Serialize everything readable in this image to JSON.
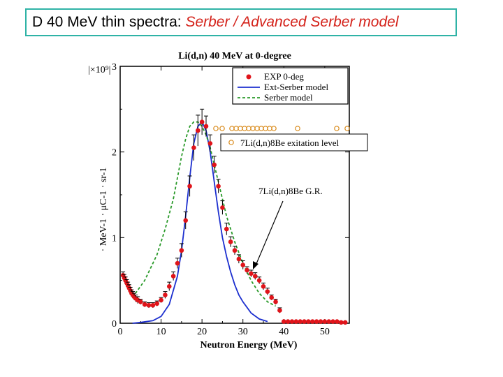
{
  "slide": {
    "title_prefix": "D 40 MeV thin spectra: ",
    "title_models": "Serber / Advanced Serber model"
  },
  "colors": {
    "exp": "#e0141a",
    "ext_serber": "#1c2fcf",
    "serber": "#2a9a2a",
    "orange_markers": "#d98a1a",
    "title_border": "#2fb3a6",
    "title_italic": "#d4221a"
  },
  "chart_data": {
    "type": "scatter",
    "title": "Li(d,n) 40 MeV at 0-degree",
    "xlabel": "Neutron Energy (MeV)",
    "ylabel_partial": "· MeV-1 · μC-1 · sr-1",
    "y_multiplier": "|×10⁹|",
    "xlim": [
      0,
      56
    ],
    "ylim": [
      0,
      3
    ],
    "x_ticks": [
      0,
      10,
      20,
      30,
      40,
      50
    ],
    "y_ticks": [
      0,
      1,
      2,
      3
    ],
    "legend_position": "top-right",
    "legend": [
      "EXP 0-deg",
      "Ext-Serber model",
      "Serber model"
    ],
    "annotations": {
      "excitation_level": "7Li(d,n)8Be exitation level",
      "giant_resonance": "7Li(d,n)8Be G.R."
    },
    "series": [
      {
        "name": "EXP 0-deg",
        "style": "points",
        "x": [
          0.7,
          1.0,
          1.3,
          1.6,
          1.9,
          2.2,
          2.5,
          2.8,
          3.1,
          3.4,
          3.8,
          4.3,
          5.0,
          6.0,
          7.0,
          8.0,
          9.0,
          10.0,
          11.0,
          12.0,
          13.0,
          14.0,
          15.0,
          16.0,
          17.0,
          18.0,
          19.0,
          20.0,
          21.0,
          22.0,
          23.0,
          24.0,
          25.0,
          26.0,
          27.0,
          28.0,
          29.0,
          30.0,
          31.0,
          32.0,
          33.0,
          34.0,
          35.0,
          36.0,
          37.0,
          38.0,
          39.0,
          40.0,
          41.0,
          42.0,
          43.0,
          44.0,
          45.0,
          46.0,
          47.0,
          48.0,
          49.0,
          50.0,
          51.0,
          52.0,
          53.0,
          54.0,
          55.0
        ],
        "y": [
          0.56,
          0.53,
          0.5,
          0.47,
          0.44,
          0.41,
          0.38,
          0.35,
          0.33,
          0.31,
          0.29,
          0.27,
          0.25,
          0.22,
          0.21,
          0.21,
          0.23,
          0.27,
          0.33,
          0.43,
          0.55,
          0.7,
          0.85,
          1.2,
          1.6,
          2.05,
          2.25,
          2.35,
          2.3,
          2.1,
          1.85,
          1.6,
          1.35,
          1.1,
          0.95,
          0.85,
          0.75,
          0.68,
          0.62,
          0.58,
          0.55,
          0.5,
          0.43,
          0.37,
          0.3,
          0.25,
          0.15,
          0.02,
          0.02,
          0.02,
          0.02,
          0.02,
          0.02,
          0.02,
          0.02,
          0.02,
          0.02,
          0.02,
          0.02,
          0.02,
          0.02,
          0.01,
          0.01
        ],
        "err": [
          0.04,
          0.04,
          0.04,
          0.04,
          0.04,
          0.04,
          0.04,
          0.04,
          0.04,
          0.04,
          0.04,
          0.04,
          0.03,
          0.03,
          0.03,
          0.03,
          0.03,
          0.03,
          0.04,
          0.05,
          0.05,
          0.06,
          0.08,
          0.1,
          0.12,
          0.15,
          0.18,
          0.15,
          0.12,
          0.1,
          0.1,
          0.08,
          0.08,
          0.07,
          0.06,
          0.05,
          0.05,
          0.05,
          0.04,
          0.04,
          0.04,
          0.04,
          0.04,
          0.04,
          0.03,
          0.03,
          0.03,
          0.0,
          0.0,
          0.0,
          0.0,
          0.0,
          0.0,
          0.0,
          0.0,
          0.0,
          0.0,
          0.0,
          0.0,
          0.0,
          0.0,
          0.0,
          0.0
        ]
      },
      {
        "name": "Ext-Serber model",
        "style": "solid",
        "x": [
          3,
          5,
          8,
          10,
          12,
          14,
          15,
          16,
          17,
          18,
          19,
          20,
          21,
          22,
          23,
          24,
          25,
          26,
          27,
          28,
          29,
          30,
          32,
          34,
          36
        ],
        "y": [
          0.0,
          0.01,
          0.03,
          0.08,
          0.22,
          0.55,
          0.85,
          1.25,
          1.7,
          2.1,
          2.3,
          2.35,
          2.25,
          2.0,
          1.65,
          1.3,
          1.0,
          0.78,
          0.6,
          0.45,
          0.33,
          0.25,
          0.12,
          0.05,
          0.02
        ]
      },
      {
        "name": "Serber model",
        "style": "dashed",
        "x": [
          3,
          6,
          9,
          11,
          13,
          14,
          15,
          16,
          17,
          18,
          19,
          20,
          21,
          22,
          23,
          24,
          25,
          26,
          28,
          30,
          32,
          34,
          36,
          38
        ],
        "y": [
          0.3,
          0.5,
          0.8,
          1.1,
          1.45,
          1.7,
          1.95,
          2.15,
          2.3,
          2.35,
          2.35,
          2.3,
          2.2,
          2.05,
          1.85,
          1.65,
          1.45,
          1.25,
          0.95,
          0.7,
          0.5,
          0.35,
          0.25,
          0.2
        ]
      }
    ]
  }
}
